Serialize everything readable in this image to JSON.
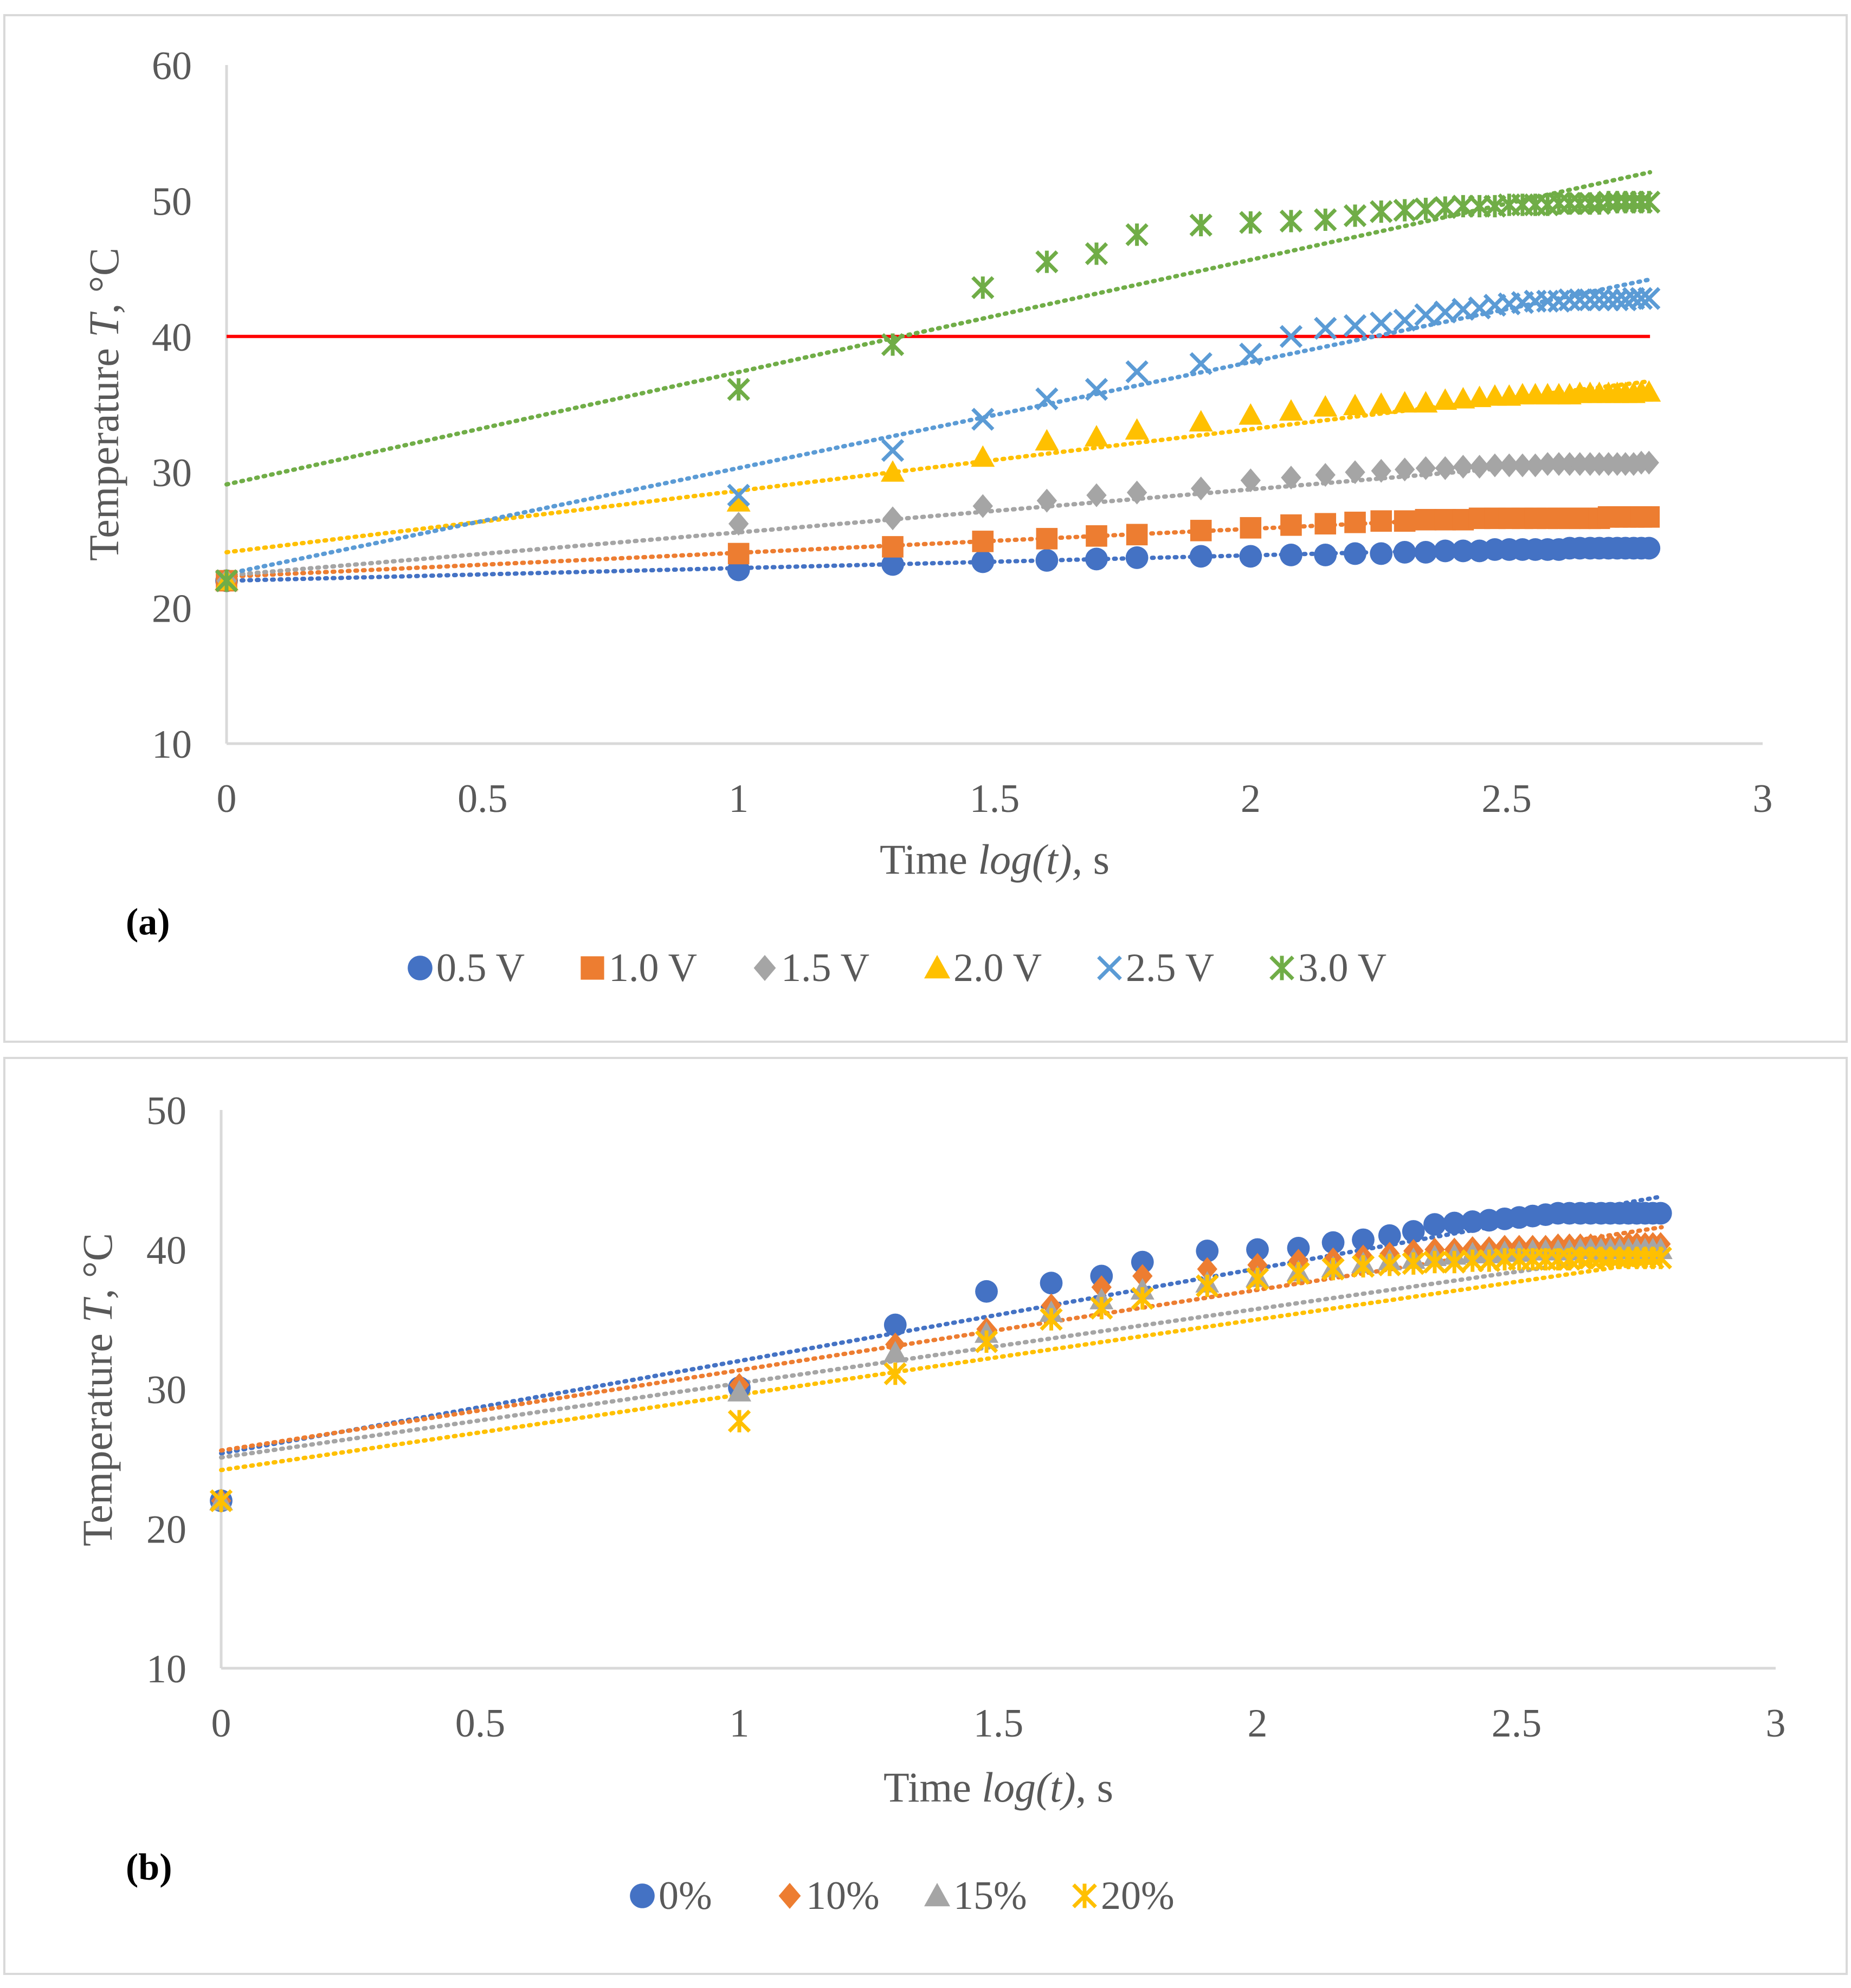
{
  "chart_data": [
    {
      "panel_label": "(a)",
      "type": "scatter",
      "xlabel_plain": "Time ",
      "xlabel_italic": "log(t),",
      "xlabel_unit": " s",
      "ylabel_plain": "Temperature ",
      "ylabel_italic": "T",
      "ylabel_unit": ", °C",
      "xlim": [
        0,
        3
      ],
      "ylim": [
        10,
        60
      ],
      "xticks": [
        0,
        0.5,
        1,
        1.5,
        2,
        2.5,
        3
      ],
      "xtick_labels": [
        "0",
        "0.5",
        "1",
        "1.5",
        "2",
        "2.5",
        "3"
      ],
      "yticks": [
        10,
        20,
        30,
        40,
        50,
        60
      ],
      "ytick_labels": [
        "10",
        "20",
        "30",
        "40",
        "50",
        "60"
      ],
      "grid": false,
      "legend_position": "bottom",
      "reference_line": {
        "y": 40,
        "x_range": [
          0,
          2.78
        ],
        "color": "#ff0000"
      },
      "series": [
        {
          "name": "0.5 V",
          "marker": "circle",
          "color": "#4472c4",
          "x": [
            0,
            1,
            1.301,
            1.477,
            1.602,
            1.699,
            1.778,
            1.903,
            2.0,
            2.079,
            2.146,
            2.204,
            2.255,
            2.301,
            2.342,
            2.38,
            2.415,
            2.447,
            2.477,
            2.505,
            2.531,
            2.556,
            2.58,
            2.602,
            2.623,
            2.643,
            2.663,
            2.681,
            2.699,
            2.716,
            2.732,
            2.748,
            2.763,
            2.778
          ],
          "y": [
            22,
            22.8,
            23.2,
            23.4,
            23.5,
            23.6,
            23.7,
            23.8,
            23.8,
            23.9,
            23.9,
            24,
            24,
            24.1,
            24.1,
            24.2,
            24.2,
            24.2,
            24.3,
            24.3,
            24.3,
            24.3,
            24.3,
            24.3,
            24.4,
            24.4,
            24.4,
            24.4,
            24.4,
            24.4,
            24.4,
            24.4,
            24.4,
            24.4
          ],
          "trend": [
            22.0,
            24.6
          ]
        },
        {
          "name": "1.0 V",
          "marker": "square",
          "color": "#ed7d31",
          "x": [
            0,
            1,
            1.301,
            1.477,
            1.602,
            1.699,
            1.778,
            1.903,
            2.0,
            2.079,
            2.146,
            2.204,
            2.255,
            2.301,
            2.342,
            2.38,
            2.415,
            2.447,
            2.477,
            2.505,
            2.531,
            2.556,
            2.58,
            2.602,
            2.623,
            2.643,
            2.663,
            2.681,
            2.699,
            2.716,
            2.732,
            2.748,
            2.763,
            2.778
          ],
          "y": [
            22,
            24,
            24.5,
            24.9,
            25.1,
            25.3,
            25.4,
            25.7,
            25.9,
            26.1,
            26.2,
            26.3,
            26.4,
            26.4,
            26.5,
            26.5,
            26.5,
            26.6,
            26.6,
            26.6,
            26.6,
            26.6,
            26.6,
            26.6,
            26.6,
            26.6,
            26.6,
            26.6,
            26.7,
            26.7,
            26.7,
            26.7,
            26.7,
            26.7
          ],
          "trend": [
            22.3,
            27.2
          ]
        },
        {
          "name": "1.5 V",
          "marker": "diamond",
          "color": "#a5a5a5",
          "x": [
            0,
            1,
            1.301,
            1.477,
            1.602,
            1.699,
            1.778,
            1.903,
            2.0,
            2.079,
            2.146,
            2.204,
            2.255,
            2.301,
            2.342,
            2.38,
            2.415,
            2.447,
            2.477,
            2.505,
            2.531,
            2.556,
            2.58,
            2.602,
            2.623,
            2.643,
            2.663,
            2.681,
            2.699,
            2.716,
            2.732,
            2.748,
            2.763,
            2.778
          ],
          "y": [
            22,
            26.2,
            26.6,
            27.5,
            27.9,
            28.3,
            28.5,
            28.8,
            29.4,
            29.6,
            29.8,
            30,
            30.1,
            30.2,
            30.3,
            30.3,
            30.4,
            30.4,
            30.5,
            30.5,
            30.5,
            30.5,
            30.6,
            30.6,
            30.6,
            30.6,
            30.6,
            30.6,
            30.6,
            30.6,
            30.6,
            30.6,
            30.7,
            30.7
          ],
          "trend": [
            22.4,
            31.2
          ]
        },
        {
          "name": "2.0 V",
          "marker": "triangle",
          "color": "#ffc000",
          "x": [
            0,
            1,
            1.301,
            1.477,
            1.602,
            1.699,
            1.778,
            1.903,
            2.0,
            2.079,
            2.146,
            2.204,
            2.255,
            2.301,
            2.342,
            2.38,
            2.415,
            2.447,
            2.477,
            2.505,
            2.531,
            2.556,
            2.58,
            2.602,
            2.623,
            2.643,
            2.663,
            2.681,
            2.699,
            2.716,
            2.732,
            2.748,
            2.763,
            2.778
          ],
          "y": [
            22,
            27.8,
            30,
            31.1,
            32.3,
            32.6,
            33.1,
            33.7,
            34.2,
            34.5,
            34.8,
            34.9,
            35,
            35.1,
            35.1,
            35.3,
            35.4,
            35.5,
            35.6,
            35.6,
            35.7,
            35.7,
            35.7,
            35.7,
            35.7,
            35.8,
            35.8,
            35.8,
            35.8,
            35.8,
            35.8,
            35.8,
            35.9,
            35.9
          ],
          "trend": [
            24.1,
            36.7
          ]
        },
        {
          "name": "2.5 V",
          "marker": "x",
          "color": "#5b9bd5",
          "x": [
            0,
            1,
            1.301,
            1.477,
            1.602,
            1.699,
            1.778,
            1.903,
            2.0,
            2.079,
            2.146,
            2.204,
            2.255,
            2.301,
            2.342,
            2.38,
            2.415,
            2.447,
            2.477,
            2.505,
            2.531,
            2.556,
            2.58,
            2.602,
            2.623,
            2.643,
            2.663,
            2.681,
            2.699,
            2.716,
            2.732,
            2.748,
            2.763,
            2.778
          ],
          "y": [
            22,
            28.3,
            31.6,
            33.9,
            35.4,
            36.1,
            37.4,
            38,
            38.7,
            40,
            40.6,
            40.8,
            41,
            41.2,
            41.6,
            41.8,
            42,
            42.1,
            42.3,
            42.4,
            42.5,
            42.6,
            42.6,
            42.6,
            42.7,
            42.7,
            42.7,
            42.7,
            42.7,
            42.7,
            42.7,
            42.8,
            42.8,
            42.8
          ],
          "trend": [
            22.5,
            44.2
          ]
        },
        {
          "name": "3.0 V",
          "marker": "star",
          "color": "#70ad47",
          "x": [
            0,
            1,
            1.301,
            1.477,
            1.602,
            1.699,
            1.778,
            1.903,
            2.0,
            2.079,
            2.146,
            2.204,
            2.255,
            2.301,
            2.342,
            2.38,
            2.415,
            2.447,
            2.477,
            2.505,
            2.531,
            2.556,
            2.58,
            2.602,
            2.623,
            2.643,
            2.663,
            2.681,
            2.699,
            2.716,
            2.732,
            2.748,
            2.763,
            2.778
          ],
          "y": [
            22,
            36.1,
            39.4,
            43.6,
            45.5,
            46.1,
            47.5,
            48.2,
            48.4,
            48.5,
            48.6,
            48.9,
            49.2,
            49.3,
            49.4,
            49.5,
            49.6,
            49.6,
            49.6,
            49.7,
            49.7,
            49.7,
            49.7,
            49.8,
            49.8,
            49.8,
            49.8,
            49.8,
            49.9,
            49.9,
            49.9,
            49.9,
            49.9,
            49.9
          ],
          "trend": [
            29.1,
            52.1
          ]
        }
      ]
    },
    {
      "panel_label": "(b)",
      "type": "scatter",
      "xlabel_plain": "Time ",
      "xlabel_italic": "log(t)",
      "xlabel_unit": ", s",
      "ylabel_plain": "Temperature ",
      "ylabel_italic": "T",
      "ylabel_unit": ", °C",
      "xlim": [
        0,
        3
      ],
      "ylim": [
        10,
        50
      ],
      "xticks": [
        0,
        0.5,
        1,
        1.5,
        2,
        2.5,
        3
      ],
      "xtick_labels": [
        "0",
        "0.5",
        "1",
        "1.5",
        "2",
        "2.5",
        "3"
      ],
      "yticks": [
        10,
        20,
        30,
        40,
        50
      ],
      "ytick_labels": [
        "10",
        "20",
        "30",
        "40",
        "50"
      ],
      "grid": false,
      "legend_position": "bottom",
      "series": [
        {
          "name": "0%",
          "marker": "circle",
          "color": "#4472c4",
          "x": [
            0,
            1,
            1.301,
            1.477,
            1.602,
            1.699,
            1.778,
            1.903,
            2.0,
            2.079,
            2.146,
            2.204,
            2.255,
            2.301,
            2.342,
            2.38,
            2.415,
            2.447,
            2.477,
            2.505,
            2.531,
            2.556,
            2.58,
            2.602,
            2.623,
            2.643,
            2.663,
            2.681,
            2.699,
            2.716,
            2.732,
            2.748,
            2.763,
            2.778
          ],
          "y": [
            22,
            30.1,
            34.6,
            37,
            37.6,
            38.1,
            39.1,
            39.9,
            40,
            40.1,
            40.5,
            40.7,
            41,
            41.3,
            41.8,
            41.9,
            42,
            42.1,
            42.2,
            42.3,
            42.4,
            42.5,
            42.6,
            42.6,
            42.6,
            42.6,
            42.6,
            42.6,
            42.6,
            42.6,
            42.6,
            42.6,
            42.6,
            42.6
          ],
          "trend": [
            25.4,
            43.8
          ]
        },
        {
          "name": "10%",
          "marker": "diamond",
          "color": "#ed7d31",
          "x": [
            0,
            1,
            1.301,
            1.477,
            1.602,
            1.699,
            1.778,
            1.903,
            2.0,
            2.079,
            2.146,
            2.204,
            2.255,
            2.301,
            2.342,
            2.38,
            2.415,
            2.447,
            2.477,
            2.505,
            2.531,
            2.556,
            2.58,
            2.602,
            2.623,
            2.643,
            2.663,
            2.681,
            2.699,
            2.716,
            2.732,
            2.748,
            2.763,
            2.778
          ],
          "y": [
            22,
            30.3,
            33.2,
            34.3,
            36,
            37.3,
            38.1,
            38.6,
            38.9,
            39.2,
            39.3,
            39.5,
            39.7,
            39.9,
            40,
            40,
            40.1,
            40.1,
            40.2,
            40.2,
            40.2,
            40.2,
            40.3,
            40.3,
            40.3,
            40.3,
            40.3,
            40.3,
            40.3,
            40.4,
            40.4,
            40.4,
            40.4,
            40.4
          ],
          "trend": [
            25.6,
            41.6
          ]
        },
        {
          "name": "15%",
          "marker": "triangle",
          "color": "#a5a5a5",
          "x": [
            0,
            1,
            1.301,
            1.477,
            1.602,
            1.699,
            1.778,
            1.903,
            2.0,
            2.079,
            2.146,
            2.204,
            2.255,
            2.301,
            2.342,
            2.38,
            2.415,
            2.447,
            2.477,
            2.505,
            2.531,
            2.556,
            2.58,
            2.602,
            2.623,
            2.643,
            2.663,
            2.681,
            2.699,
            2.716,
            2.732,
            2.748,
            2.763,
            2.778
          ],
          "y": [
            22,
            29.8,
            32.6,
            34,
            35.5,
            36.4,
            37.1,
            37.6,
            38,
            38.4,
            38.7,
            39,
            39.2,
            39.3,
            39.5,
            39.6,
            39.7,
            39.7,
            39.8,
            39.8,
            39.9,
            39.9,
            39.9,
            39.9,
            40,
            40,
            40,
            40,
            40,
            40,
            40,
            40,
            40,
            40
          ],
          "trend": [
            25.1,
            39.9
          ]
        },
        {
          "name": "20%",
          "marker": "star",
          "color": "#ffc000",
          "x": [
            0,
            1,
            1.301,
            1.477,
            1.602,
            1.699,
            1.778,
            1.903,
            2.0,
            2.079,
            2.146,
            2.204,
            2.255,
            2.301,
            2.342,
            2.38,
            2.415,
            2.447,
            2.477,
            2.505,
            2.531,
            2.556,
            2.58,
            2.602,
            2.623,
            2.643,
            2.663,
            2.681,
            2.699,
            2.716,
            2.732,
            2.748,
            2.763,
            2.778
          ],
          "y": [
            22,
            27.7,
            31.1,
            33.4,
            35,
            35.8,
            36.5,
            37.4,
            37.9,
            38.3,
            38.6,
            38.8,
            38.9,
            39,
            39.1,
            39.1,
            39.2,
            39.2,
            39.3,
            39.3,
            39.3,
            39.3,
            39.3,
            39.3,
            39.4,
            39.4,
            39.4,
            39.4,
            39.4,
            39.4,
            39.4,
            39.4,
            39.4,
            39.4
          ],
          "trend": [
            24.2,
            39.2
          ]
        }
      ]
    }
  ]
}
